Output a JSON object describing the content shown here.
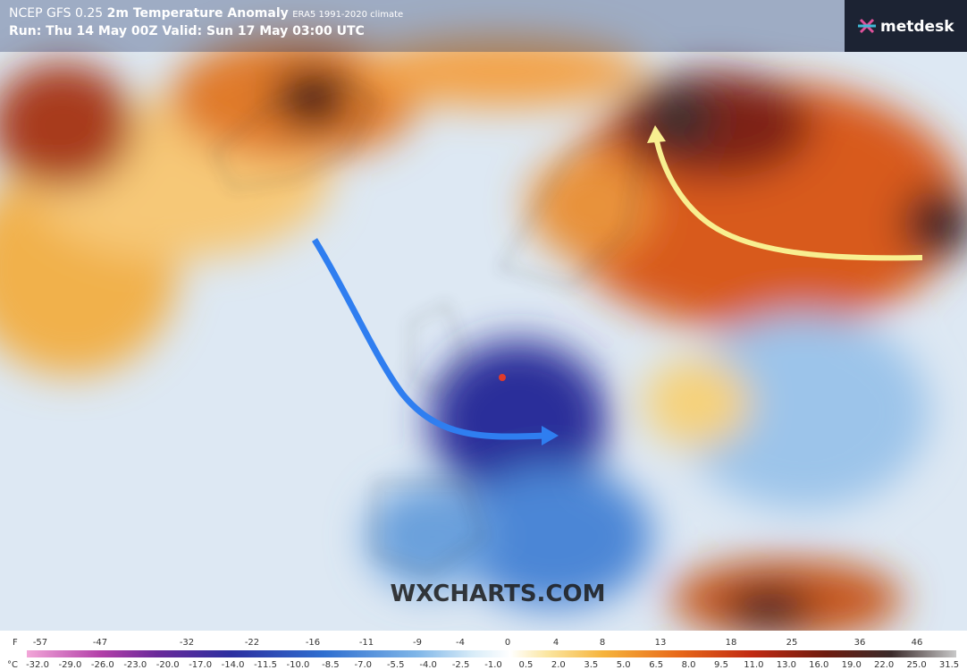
{
  "header": {
    "title": "NCEP GFS 0.25",
    "variable": "2m Temperature Anomaly",
    "climate": "ERA5 1991-2020 climate",
    "run": "Run: Thu 14 May 00Z Valid: Sun 17 May 03:00 UTC"
  },
  "logo": "metdesk",
  "watermark": "WXCHARTS.COM",
  "colorbar": {
    "f_unit": "F",
    "f_labels": [
      "-57",
      "-47",
      "-32",
      "-22",
      "-16",
      "-11",
      "-9",
      "-4",
      "0",
      "4",
      "8",
      "13",
      "18",
      "25",
      "36",
      "46"
    ],
    "c_unit": "°C",
    "c_labels": [
      "-32.0",
      "-29.0",
      "-26.0",
      "-23.0",
      "-20.0",
      "-17.0",
      "-14.0",
      "-11.5",
      "-10.0",
      "-8.5",
      "-7.0",
      "-5.5",
      "-4.0",
      "-2.5",
      "-1.0",
      "0.5",
      "2.0",
      "3.5",
      "5.0",
      "6.5",
      "8.0",
      "9.5",
      "11.0",
      "13.0",
      "16.0",
      "19.0",
      "22.0",
      "25.0",
      "31.5"
    ]
  }
}
